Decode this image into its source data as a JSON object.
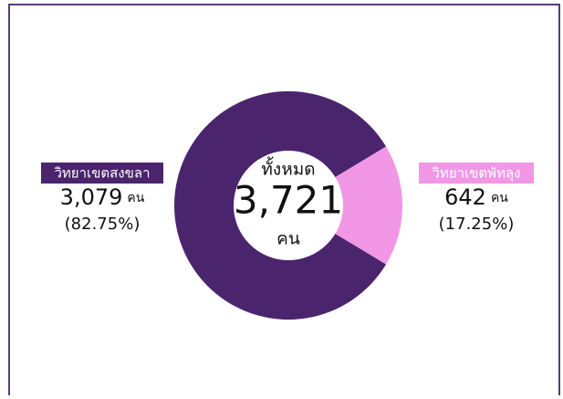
{
  "chart_data": {
    "type": "donut",
    "center_title": "ทั้งหมด",
    "center_value": "3,721",
    "center_unit": "คน",
    "categories": [
      "วิทยาเขตสงขลา",
      "วิทยาเขตพัทลุง"
    ],
    "values": [
      3079,
      642
    ],
    "value_labels": [
      "3,079",
      "642"
    ],
    "percent_labels": [
      "(82.75%)",
      "(17.25%)"
    ],
    "unit": "คน",
    "colors": [
      "#4b246e",
      "#f197e6"
    ]
  }
}
